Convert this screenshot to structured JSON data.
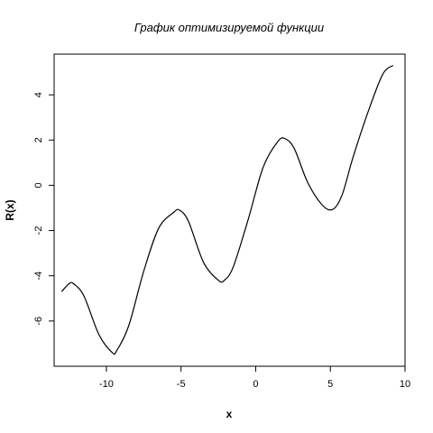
{
  "chart_data": {
    "type": "line",
    "title": "График оптимизируемой функции",
    "xlabel": "x",
    "ylabel": "R(x)",
    "xlim": [
      -13.5,
      10
    ],
    "ylim": [
      -8,
      5.8
    ],
    "x_ticks": [
      -10,
      -5,
      0,
      5,
      10
    ],
    "y_ticks": [
      -6,
      -4,
      -2,
      0,
      2,
      4
    ],
    "x_tick_labels": [
      "-10",
      "-5",
      "0",
      "5",
      "10"
    ],
    "y_tick_labels": [
      "-6",
      "-4",
      "-2",
      "0",
      "2",
      "4"
    ],
    "grid": false,
    "series": [
      {
        "color": "#000000",
        "x": [
          -13,
          -12.5,
          -12.2,
          -11.5,
          -10.5,
          -9.6,
          -9.3,
          -8.5,
          -7.5,
          -6.5,
          -5.5,
          -5.1,
          -4.5,
          -3.5,
          -2.5,
          -2.1,
          -1.5,
          -0.5,
          0.5,
          1.5,
          2.0,
          2.6,
          3.5,
          4.5,
          5.2,
          5.8,
          6.5,
          7.5,
          8.5,
          9.2
        ],
        "y": [
          -4.7,
          -4.35,
          -4.35,
          -4.9,
          -6.6,
          -7.4,
          -7.3,
          -6.2,
          -3.8,
          -1.9,
          -1.2,
          -1.1,
          -1.6,
          -3.4,
          -4.2,
          -4.2,
          -3.6,
          -1.5,
          0.8,
          1.95,
          2.05,
          1.6,
          0.1,
          -0.9,
          -1.05,
          -0.4,
          1.2,
          3.2,
          4.9,
          5.3
        ]
      }
    ]
  }
}
